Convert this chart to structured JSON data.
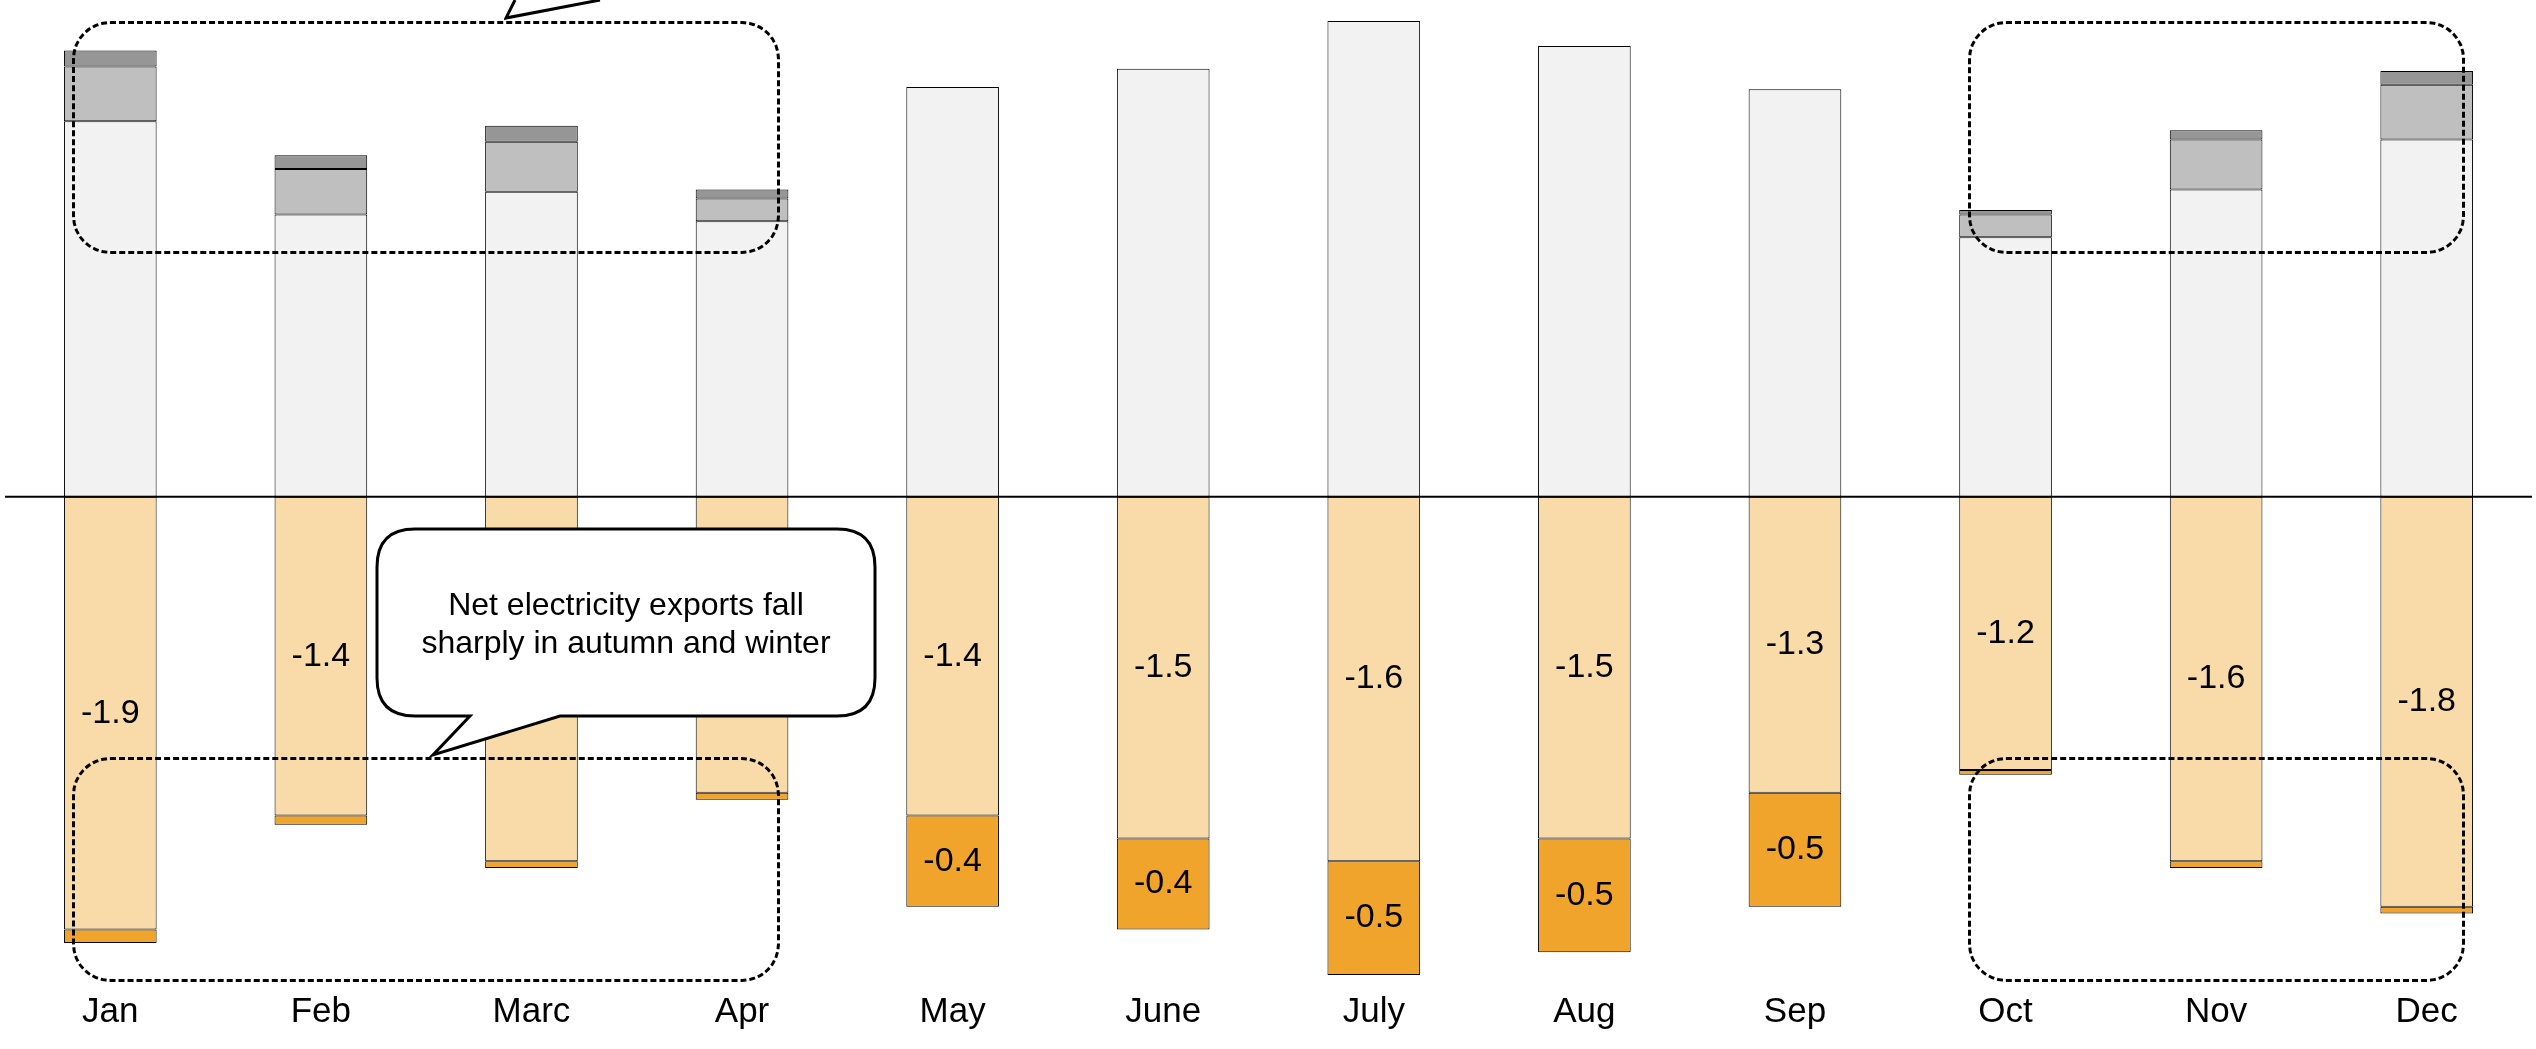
{
  "chart_data": {
    "type": "bar",
    "stacked": true,
    "categories": [
      "Jan",
      "Feb",
      "Marc",
      "Apr",
      "May",
      "June",
      "July",
      "Aug",
      "Sep",
      "Oct",
      "Nov",
      "Dec"
    ],
    "series": [
      {
        "color": "#f2f2f2",
        "values": [
          1.65,
          1.24,
          1.34,
          1.21,
          1.8,
          1.88,
          2.09,
          1.98,
          1.79,
          1.14,
          1.35,
          1.57
        ]
      },
      {
        "color": "#bfbfbf",
        "values": [
          0.24,
          0.2,
          0.22,
          0.1,
          null,
          null,
          null,
          null,
          null,
          0.1,
          0.22,
          0.24
        ]
      },
      {
        "color": "#969696",
        "values": [
          0.07,
          0.06,
          0.07,
          0.04,
          null,
          null,
          null,
          null,
          null,
          0.02,
          0.04,
          0.06
        ]
      },
      {
        "color": "#f8dba9",
        "values": [
          -1.9,
          -1.4,
          -1.6,
          -1.3,
          -1.4,
          -1.5,
          -1.6,
          -1.5,
          -1.3,
          -1.2,
          -1.6,
          -1.8
        ],
        "value_labels": [
          "-1.9",
          "-1.4",
          null,
          null,
          "-1.4",
          "-1.5",
          "-1.6",
          "-1.5",
          "-1.3",
          "-1.2",
          "-1.6",
          "-1.8"
        ]
      },
      {
        "color": "#f0a42c",
        "values": [
          -0.06,
          -0.04,
          -0.03,
          -0.03,
          -0.4,
          -0.4,
          -0.5,
          -0.5,
          -0.5,
          -0.02,
          -0.03,
          -0.03
        ],
        "value_labels": [
          null,
          null,
          null,
          null,
          "-0.4",
          "-0.4",
          "-0.5",
          "-0.5",
          "-0.5",
          null,
          null,
          null
        ]
      }
    ],
    "annotations": [
      "Net electricity exports fall sharply in autumn and winter"
    ],
    "grid": false,
    "legend": false
  }
}
